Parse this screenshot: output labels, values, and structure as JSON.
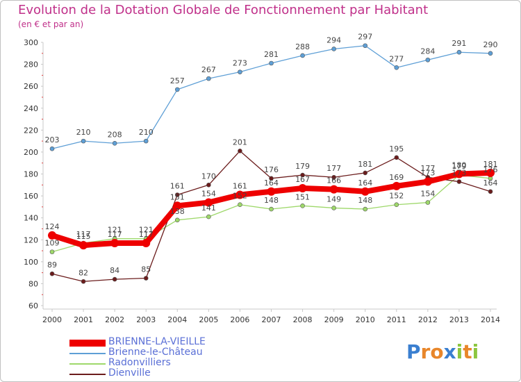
{
  "chart_data": {
    "type": "line",
    "title": "Evolution de la Dotation Globale de Fonctionnement par Habitant",
    "subtitle": "(en € et par an)",
    "xlabel": "",
    "ylabel": "",
    "categories": [
      "2000",
      "2001",
      "2002",
      "2003",
      "2004",
      "2005",
      "2006",
      "2007",
      "2008",
      "2009",
      "2010",
      "2011",
      "2012",
      "2013",
      "2014"
    ],
    "ylim": [
      60,
      300
    ],
    "yticks": [
      60,
      80,
      100,
      120,
      140,
      160,
      180,
      200,
      220,
      240,
      260,
      280,
      300
    ],
    "grid": false,
    "series": [
      {
        "name": "BRIENNE-LA-VIEILLE",
        "color": "#ee0000",
        "values": [
          124,
          115,
          117,
          117,
          151,
          154,
          161,
          164,
          167,
          166,
          164,
          169,
          173,
          180,
          181
        ],
        "labels": [
          "124",
          "115",
          "117",
          "117",
          "151",
          "154",
          "161",
          "164",
          "167",
          "166",
          "164",
          "169",
          "173",
          "180",
          "181"
        ]
      },
      {
        "name": "Brienne-le-Château",
        "color": "#5e9fd6",
        "values": [
          203,
          210,
          208,
          210,
          257,
          267,
          273,
          281,
          288,
          294,
          297,
          277,
          284,
          291,
          290
        ],
        "labels": [
          "203",
          "210",
          "208",
          "210",
          "257",
          "267",
          "273",
          "281",
          "288",
          "294",
          "297",
          "277",
          "284",
          "291",
          "290"
        ]
      },
      {
        "name": "Radonvilliers",
        "color": "#9ed86a",
        "values": [
          109,
          117,
          121,
          121,
          138,
          141,
          152,
          148,
          151,
          149,
          148,
          152,
          154,
          179,
          176
        ],
        "labels": [
          "109",
          "117",
          "121",
          "121",
          "138",
          "141",
          "152",
          "148",
          "151",
          "149",
          "148",
          "152",
          "154",
          "179",
          "176"
        ]
      },
      {
        "name": "Dienville",
        "color": "#6b1c1c",
        "values": [
          89,
          82,
          84,
          85,
          161,
          170,
          201,
          176,
          179,
          177,
          181,
          195,
          177,
          173,
          164
        ],
        "labels": [
          "89",
          "82",
          "84",
          "85",
          "161",
          "170",
          "201",
          "176",
          "179",
          "177",
          "181",
          "195",
          "177",
          "173",
          "164"
        ]
      }
    ]
  },
  "logo": {
    "letters": [
      "P",
      "r",
      "o",
      "x",
      "i",
      "t",
      "i"
    ],
    "colors": [
      "#3a7fd0",
      "#e8862a",
      "#e8862a",
      "#3a7fd0",
      "#8cc63f",
      "#e8862a",
      "#8cc63f"
    ]
  }
}
